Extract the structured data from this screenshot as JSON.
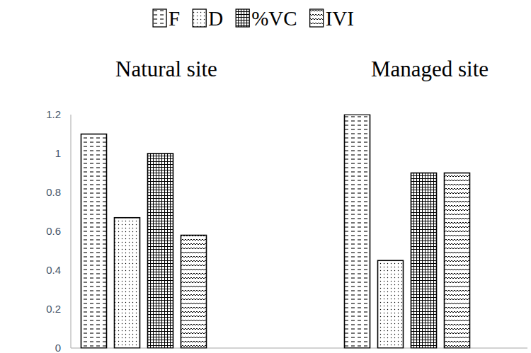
{
  "chart_data": {
    "type": "bar",
    "categories": [
      "Natural site",
      "Managed site"
    ],
    "series": [
      {
        "name": "F",
        "color": "#000000",
        "values": [
          1.1,
          1.2
        ]
      },
      {
        "name": "D",
        "color": "#000000",
        "values": [
          0.67,
          0.45
        ]
      },
      {
        "name": "%VC",
        "color": "#000000",
        "values": [
          1.0,
          0.9
        ]
      },
      {
        "name": "IVI",
        "color": "#000000",
        "values": [
          0.58,
          0.9
        ]
      }
    ],
    "ylim": [
      0,
      1.2
    ],
    "yticks": [
      0,
      0.2,
      0.4,
      0.6,
      0.8,
      1,
      1.2
    ],
    "grid": false,
    "legend": "top",
    "data_labels": false
  }
}
